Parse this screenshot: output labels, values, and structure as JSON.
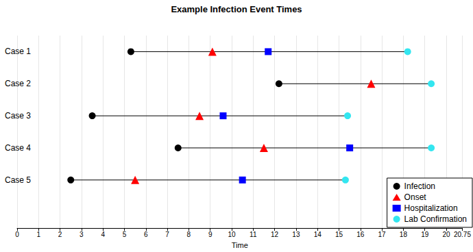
{
  "chart_data": {
    "type": "timeline",
    "title": "Example Infection Event Times",
    "x_label": "Time",
    "categories": [
      "Case 1",
      "Case 2",
      "Case 3",
      "Case 4",
      "Case 5",
      null
    ],
    "series": [
      {
        "name": "Infection",
        "color": "#000000",
        "marker": "circle",
        "values": [
          5.3,
          12.2,
          3.5,
          7.5,
          2.5,
          null
        ]
      },
      {
        "name": "Onset",
        "color": "#ff0000",
        "marker": "triangle",
        "values": [
          9.1,
          16.5,
          8.5,
          11.5,
          5.5,
          null
        ]
      },
      {
        "name": "Hospitalization",
        "color": "#0000ff",
        "marker": "square",
        "values": [
          11.7,
          null,
          9.6,
          15.5,
          10.5,
          null
        ]
      },
      {
        "name": "Lab Confirmation",
        "color": "#33e6f0",
        "marker": "circle",
        "values": [
          18.2,
          19.3,
          15.4,
          19.3,
          15.3,
          null
        ]
      }
    ],
    "xlim": [
      0,
      20.75
    ],
    "xticks": [
      0,
      1,
      2,
      3,
      4,
      5,
      6,
      7,
      8,
      9,
      10,
      11,
      12,
      13,
      14,
      15,
      16,
      17,
      18,
      19,
      20
    ],
    "grid": true,
    "legend": "bottom-right"
  }
}
